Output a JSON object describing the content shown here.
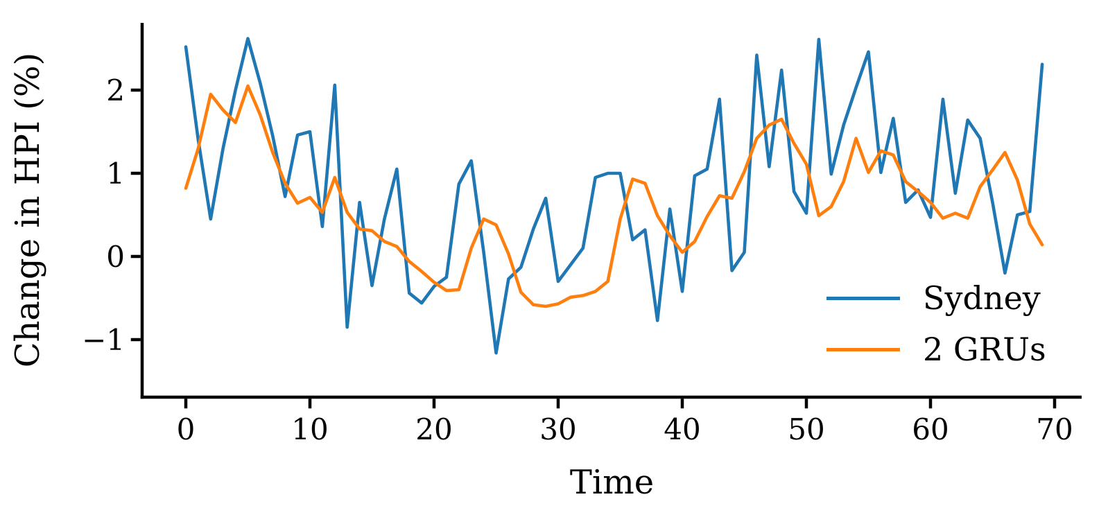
{
  "chart_data": {
    "type": "line",
    "title": "",
    "xlabel": "Time",
    "ylabel": "Change in HPI (%)",
    "x_ticks": [
      0,
      10,
      20,
      30,
      40,
      50,
      60,
      70
    ],
    "y_ticks": [
      -1,
      0,
      1,
      2
    ],
    "xlim": [
      -3.5,
      72.2
    ],
    "ylim": [
      -1.69,
      2.81
    ],
    "grid": false,
    "legend_position": "lower right",
    "background_color": "#ffffff",
    "text_color": "#000000",
    "x": [
      0,
      1,
      2,
      3,
      4,
      5,
      6,
      7,
      8,
      9,
      10,
      11,
      12,
      13,
      14,
      15,
      16,
      17,
      18,
      19,
      20,
      21,
      22,
      23,
      24,
      25,
      26,
      27,
      28,
      29,
      30,
      31,
      32,
      33,
      34,
      35,
      36,
      37,
      38,
      39,
      40,
      41,
      42,
      43,
      44,
      45,
      46,
      47,
      48,
      49,
      50,
      51,
      52,
      53,
      54,
      55,
      56,
      57,
      58,
      59,
      60,
      61,
      62,
      63,
      64,
      65,
      66,
      67,
      68,
      69
    ],
    "series": [
      {
        "name": "Sydney",
        "color": "#1f77b4",
        "values": [
          2.52,
          1.4,
          0.45,
          1.3,
          2.0,
          2.62,
          2.08,
          1.45,
          0.72,
          1.46,
          1.5,
          0.36,
          2.06,
          -0.85,
          0.65,
          -0.35,
          0.45,
          1.05,
          -0.44,
          -0.56,
          -0.36,
          -0.25,
          0.87,
          1.15,
          0.05,
          -1.16,
          -0.27,
          -0.13,
          0.33,
          0.7,
          -0.3,
          -0.1,
          0.1,
          0.95,
          1.0,
          1.0,
          0.2,
          0.32,
          -0.77,
          0.57,
          -0.42,
          0.97,
          1.05,
          1.89,
          -0.17,
          0.05,
          2.42,
          1.08,
          2.24,
          0.78,
          0.52,
          2.61,
          0.99,
          1.58,
          2.03,
          2.46,
          1.01,
          1.66,
          0.65,
          0.8,
          0.47,
          1.89,
          0.76,
          1.64,
          1.42,
          0.65,
          -0.2,
          0.5,
          0.54,
          2.31
        ]
      },
      {
        "name": "2 GRUs",
        "color": "#ff7f0e",
        "values": [
          0.82,
          1.3,
          1.95,
          1.76,
          1.61,
          2.05,
          1.7,
          1.25,
          0.88,
          0.64,
          0.71,
          0.53,
          0.95,
          0.53,
          0.33,
          0.31,
          0.18,
          0.12,
          -0.06,
          -0.18,
          -0.31,
          -0.41,
          -0.4,
          0.1,
          0.45,
          0.38,
          0.03,
          -0.43,
          -0.58,
          -0.6,
          -0.57,
          -0.49,
          -0.47,
          -0.42,
          -0.3,
          0.45,
          0.93,
          0.88,
          0.49,
          0.25,
          0.05,
          0.18,
          0.48,
          0.73,
          0.7,
          1.02,
          1.42,
          1.58,
          1.65,
          1.36,
          1.11,
          0.49,
          0.6,
          0.9,
          1.42,
          1.01,
          1.27,
          1.22,
          0.9,
          0.78,
          0.65,
          0.46,
          0.52,
          0.46,
          0.84,
          1.04,
          1.25,
          0.92,
          0.39,
          0.14
        ]
      }
    ]
  }
}
